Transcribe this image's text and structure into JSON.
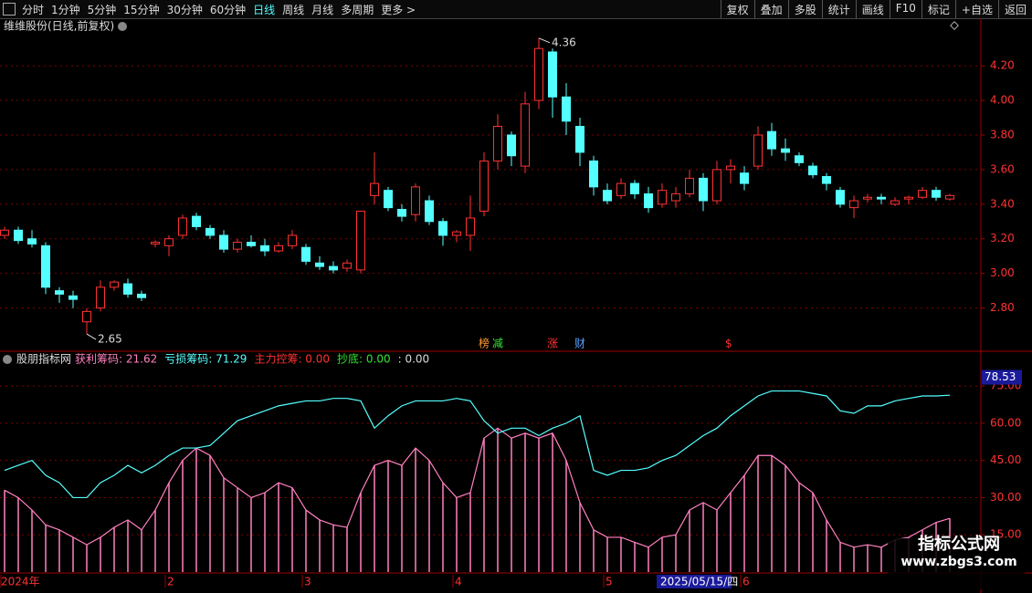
{
  "toolbar": {
    "left": [
      "分时",
      "1分钟",
      "5分钟",
      "15分钟",
      "30分钟",
      "60分钟",
      "日线",
      "周线",
      "月线",
      "多周期",
      "更多 >"
    ],
    "active": "日线",
    "right": [
      "复权",
      "叠加",
      "多股",
      "统计",
      "画线",
      "F10",
      "标记",
      "+自选",
      "返回"
    ]
  },
  "watermark": {
    "title": "指标公式网",
    "url": "www.zbgs3.com"
  },
  "chart_data": [
    {
      "type": "candlestick",
      "title": "维维股份(日线,前复权)",
      "up_color": "#ff3232",
      "down_color": "#54ffff",
      "grid": true,
      "ylim": [
        2.55,
        4.38
      ],
      "yticks": [
        {
          "value": 2.8,
          "label": "2.80"
        },
        {
          "value": 3.0,
          "label": "3.00"
        },
        {
          "value": 3.2,
          "label": "3.20"
        },
        {
          "value": 3.4,
          "label": "3.40"
        },
        {
          "value": 3.6,
          "label": "3.60"
        },
        {
          "value": 3.8,
          "label": "3.80"
        },
        {
          "value": 4.0,
          "label": "4.00"
        },
        {
          "value": 4.2,
          "label": "4.20"
        }
      ],
      "high_label": "4.36",
      "low_label": "2.65",
      "categories": [
        "2024年",
        null,
        null,
        null,
        null,
        null,
        null,
        null,
        null,
        null,
        null,
        null,
        "2",
        null,
        null,
        null,
        null,
        null,
        null,
        null,
        null,
        null,
        "3",
        null,
        null,
        null,
        null,
        null,
        null,
        null,
        null,
        null,
        null,
        "4",
        null,
        null,
        null,
        null,
        null,
        null,
        null,
        null,
        null,
        null,
        "5",
        null,
        null,
        null,
        "2025/05/15/四",
        null,
        null,
        null,
        null,
        null,
        "6",
        null,
        null,
        null,
        null,
        null,
        null,
        null,
        null,
        null,
        null,
        null,
        null,
        null,
        null,
        null
      ],
      "events": [
        null,
        null,
        null,
        null,
        null,
        null,
        null,
        null,
        null,
        null,
        null,
        null,
        null,
        null,
        null,
        null,
        null,
        null,
        null,
        null,
        null,
        null,
        null,
        null,
        null,
        null,
        null,
        null,
        null,
        null,
        null,
        null,
        null,
        null,
        null,
        "榜",
        "减",
        null,
        null,
        null,
        "涨",
        null,
        "财",
        null,
        null,
        null,
        null,
        null,
        null,
        null,
        null,
        null,
        null,
        "$",
        null,
        null,
        null,
        null,
        null,
        null,
        null,
        null,
        null,
        null,
        null,
        null,
        null,
        null,
        null,
        null
      ],
      "ohlc": [
        [
          3.22,
          3.27,
          3.2,
          3.25
        ],
        [
          3.25,
          3.27,
          3.17,
          3.19
        ],
        [
          3.2,
          3.25,
          3.15,
          3.17
        ],
        [
          3.16,
          3.18,
          2.88,
          2.92
        ],
        [
          2.9,
          2.92,
          2.83,
          2.88
        ],
        [
          2.87,
          2.9,
          2.8,
          2.85
        ],
        [
          2.72,
          2.8,
          2.65,
          2.78
        ],
        [
          2.8,
          2.96,
          2.78,
          2.92
        ],
        [
          2.92,
          2.96,
          2.9,
          2.95
        ],
        [
          2.94,
          2.97,
          2.86,
          2.88
        ],
        [
          2.88,
          2.9,
          2.84,
          2.86
        ],
        [
          3.17,
          3.19,
          3.15,
          3.18
        ],
        [
          3.16,
          3.22,
          3.1,
          3.2
        ],
        [
          3.22,
          3.34,
          3.2,
          3.32
        ],
        [
          3.33,
          3.35,
          3.25,
          3.27
        ],
        [
          3.26,
          3.28,
          3.2,
          3.22
        ],
        [
          3.22,
          3.25,
          3.12,
          3.14
        ],
        [
          3.14,
          3.2,
          3.12,
          3.18
        ],
        [
          3.18,
          3.22,
          3.15,
          3.16
        ],
        [
          3.16,
          3.2,
          3.1,
          3.13
        ],
        [
          3.13,
          3.18,
          3.12,
          3.16
        ],
        [
          3.16,
          3.25,
          3.14,
          3.22
        ],
        [
          3.15,
          3.17,
          3.05,
          3.07
        ],
        [
          3.06,
          3.1,
          3.02,
          3.04
        ],
        [
          3.04,
          3.07,
          3.0,
          3.02
        ],
        [
          3.03,
          3.08,
          3.01,
          3.06
        ],
        [
          3.02,
          3.36,
          3.0,
          3.36
        ],
        [
          3.45,
          3.7,
          3.4,
          3.52
        ],
        [
          3.48,
          3.5,
          3.36,
          3.38
        ],
        [
          3.37,
          3.4,
          3.3,
          3.33
        ],
        [
          3.34,
          3.52,
          3.3,
          3.5
        ],
        [
          3.42,
          3.45,
          3.28,
          3.3
        ],
        [
          3.3,
          3.32,
          3.16,
          3.22
        ],
        [
          3.22,
          3.25,
          3.18,
          3.24
        ],
        [
          3.22,
          3.45,
          3.13,
          3.32
        ],
        [
          3.36,
          3.7,
          3.33,
          3.65
        ],
        [
          3.65,
          3.92,
          3.6,
          3.85
        ],
        [
          3.8,
          3.82,
          3.62,
          3.68
        ],
        [
          3.62,
          4.05,
          3.58,
          3.98
        ],
        [
          4.0,
          4.36,
          3.95,
          4.3
        ],
        [
          4.28,
          4.3,
          3.9,
          4.02
        ],
        [
          4.02,
          4.1,
          3.8,
          3.88
        ],
        [
          3.85,
          3.9,
          3.62,
          3.7
        ],
        [
          3.65,
          3.68,
          3.45,
          3.5
        ],
        [
          3.48,
          3.52,
          3.4,
          3.42
        ],
        [
          3.45,
          3.55,
          3.43,
          3.52
        ],
        [
          3.52,
          3.54,
          3.43,
          3.46
        ],
        [
          3.46,
          3.5,
          3.35,
          3.38
        ],
        [
          3.4,
          3.52,
          3.38,
          3.48
        ],
        [
          3.42,
          3.5,
          3.38,
          3.46
        ],
        [
          3.46,
          3.6,
          3.44,
          3.55
        ],
        [
          3.55,
          3.58,
          3.36,
          3.42
        ],
        [
          3.42,
          3.65,
          3.4,
          3.6
        ],
        [
          3.6,
          3.66,
          3.52,
          3.62
        ],
        [
          3.58,
          3.62,
          3.48,
          3.52
        ],
        [
          3.62,
          3.85,
          3.6,
          3.8
        ],
        [
          3.82,
          3.87,
          3.68,
          3.72
        ],
        [
          3.72,
          3.78,
          3.65,
          3.7
        ],
        [
          3.68,
          3.7,
          3.62,
          3.64
        ],
        [
          3.62,
          3.64,
          3.55,
          3.57
        ],
        [
          3.56,
          3.58,
          3.48,
          3.52
        ],
        [
          3.48,
          3.5,
          3.38,
          3.4
        ],
        [
          3.38,
          3.45,
          3.32,
          3.42
        ],
        [
          3.43,
          3.46,
          3.41,
          3.44
        ],
        [
          3.44,
          3.46,
          3.4,
          3.43
        ],
        [
          3.4,
          3.44,
          3.39,
          3.42
        ],
        [
          3.43,
          3.45,
          3.4,
          3.44
        ],
        [
          3.44,
          3.5,
          3.43,
          3.48
        ],
        [
          3.48,
          3.5,
          3.42,
          3.44
        ],
        [
          3.43,
          3.46,
          3.42,
          3.45
        ]
      ]
    },
    {
      "type": "line",
      "title": "股朋指标网",
      "header": [
        {
          "text": "获利筹码: 21.62",
          "color": "#ff80c0"
        },
        {
          "text": "亏损筹码: 71.29",
          "color": "#54ffff"
        },
        {
          "text": "主力控筹: 0.00",
          "color": "#ff3232"
        },
        {
          "text": "抄底: 0.00",
          "color": "#32e632"
        },
        {
          "text": ": 0.00",
          "color": "#dcdcdc"
        }
      ],
      "ylim": [
        0,
        83.5
      ],
      "grid": true,
      "cursor_value": {
        "value": 78.53,
        "label": "78.53"
      },
      "yticks": [
        {
          "value": 15,
          "label": "15.00"
        },
        {
          "value": 30,
          "label": "30.00"
        },
        {
          "value": 45,
          "label": "45.00"
        },
        {
          "value": 60,
          "label": "60.00"
        },
        {
          "value": 75,
          "label": "75.00"
        }
      ],
      "series": [
        {
          "color": "#ff80c0",
          "values": [
            33,
            30,
            25,
            19,
            17,
            14,
            11,
            14,
            18,
            21,
            17,
            25,
            36,
            45,
            50,
            47,
            38,
            34,
            30,
            32,
            36,
            34,
            25,
            21,
            19,
            18,
            32,
            43,
            45,
            43,
            50,
            45,
            36,
            30,
            32,
            54,
            58,
            54,
            56,
            54,
            56,
            45,
            28,
            17,
            14,
            14,
            12,
            10,
            14,
            15,
            25,
            28,
            25,
            32,
            39,
            47,
            47,
            43,
            36,
            32,
            21,
            12,
            10,
            11,
            10,
            13,
            14,
            17,
            20,
            21.62
          ]
        },
        {
          "color": "#54ffff",
          "values": [
            41,
            43,
            45,
            39,
            36,
            30,
            30,
            36,
            39,
            43,
            40,
            43,
            47,
            50,
            50,
            51,
            56,
            61,
            63,
            65,
            67,
            68,
            69,
            69,
            70,
            70,
            69,
            58,
            63,
            67,
            69,
            69,
            69,
            70,
            69,
            61,
            56,
            58,
            58,
            55,
            58,
            60,
            63,
            41,
            39,
            41,
            41,
            42,
            45,
            47,
            51,
            55,
            58,
            63,
            67,
            71,
            73,
            73,
            73,
            72,
            71,
            65,
            64,
            67,
            67,
            69,
            70,
            71,
            71,
            71.29
          ]
        }
      ]
    }
  ]
}
